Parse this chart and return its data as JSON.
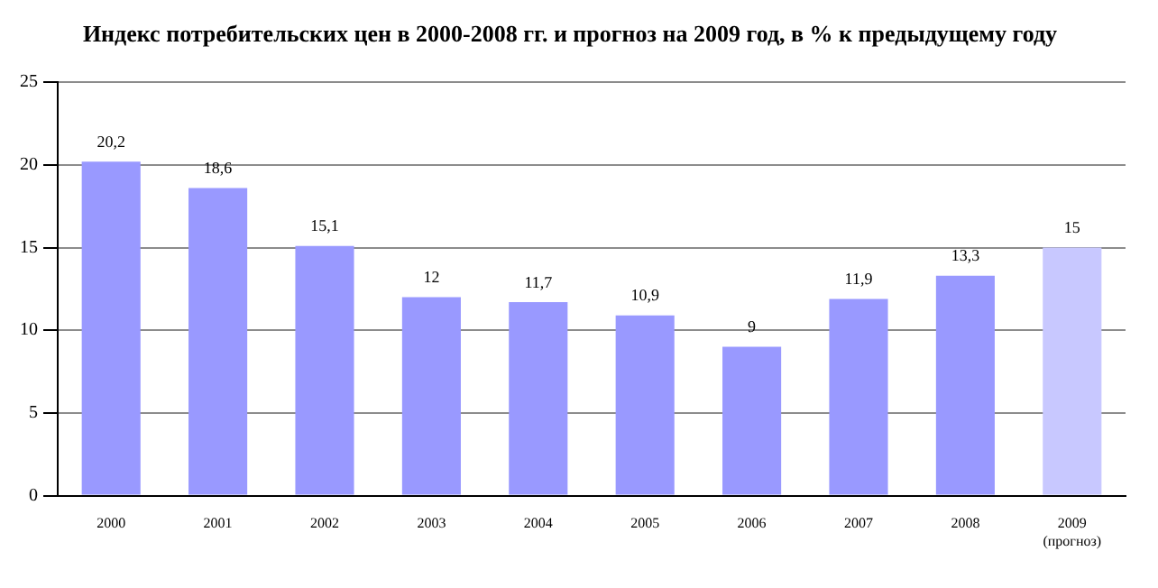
{
  "chart_data": {
    "type": "bar",
    "title": "Индекс потребительских цен в 2000-2008 гг. и прогноз на 2009 год, в % к предыдущему году",
    "categories": [
      "2000",
      "2001",
      "2002",
      "2003",
      "2004",
      "2005",
      "2006",
      "2007",
      "2008",
      "2009\n(прогноз)"
    ],
    "values": [
      20.2,
      18.6,
      15.1,
      12,
      11.7,
      10.9,
      9,
      11.9,
      13.3,
      15
    ],
    "colors": [
      "#9999ff",
      "#9999ff",
      "#9999ff",
      "#9999ff",
      "#9999ff",
      "#9999ff",
      "#9999ff",
      "#9999ff",
      "#9999ff",
      "#c8c8ff"
    ],
    "value_labels": [
      "20,2",
      "18,6",
      "15,1",
      "12",
      "11,7",
      "10,9",
      "9",
      "11,9",
      "13,3",
      "15"
    ],
    "ylim": [
      0,
      25
    ],
    "yticks": [
      0,
      5,
      10,
      15,
      20,
      25
    ],
    "grid": "y",
    "legend": false
  }
}
